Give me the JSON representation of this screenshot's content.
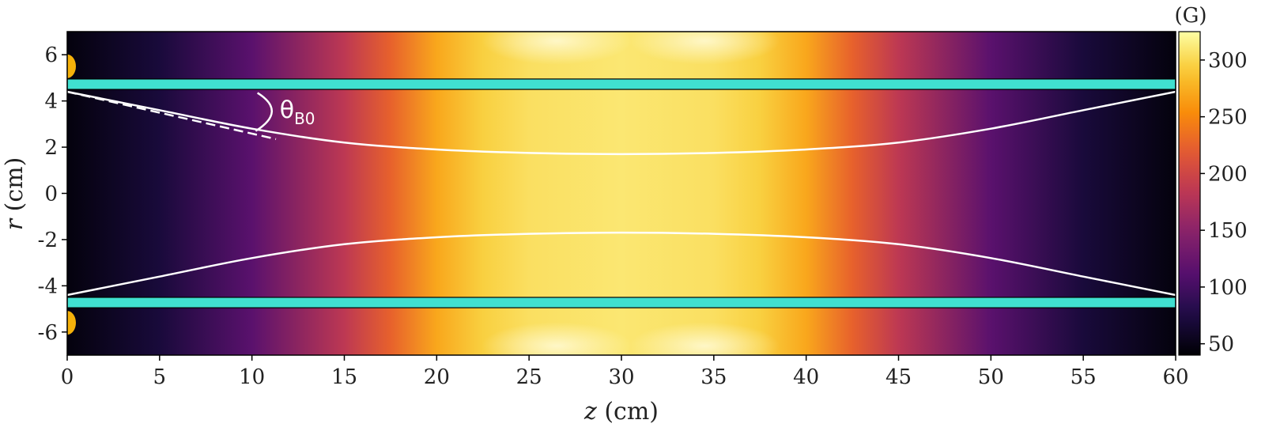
{
  "chart_data": {
    "type": "heatmap",
    "title": "",
    "xlabel": {
      "var": "z",
      "unit": " (cm)"
    },
    "ylabel": {
      "var": "r",
      "unit": " (cm)"
    },
    "xlim": [
      0,
      60
    ],
    "ylim": [
      -7,
      7
    ],
    "xticks": [
      0,
      5,
      10,
      15,
      20,
      25,
      30,
      35,
      40,
      45,
      50,
      55,
      60
    ],
    "yticks": [
      6,
      4,
      2,
      0,
      -2,
      -4,
      -6
    ],
    "colormap": "inferno",
    "colorbar": {
      "unit": "(G)",
      "range": [
        40,
        325
      ],
      "ticks": [
        50,
        100,
        150,
        200,
        250,
        300
      ]
    },
    "field_profile_B_vs_z": {
      "z": [
        0,
        5,
        10,
        15,
        17.5,
        20,
        22.5,
        25,
        30,
        35,
        37.5,
        40,
        42.5,
        45,
        50,
        55,
        60
      ],
      "B": [
        45,
        70,
        115,
        185,
        225,
        270,
        295,
        305,
        310,
        305,
        295,
        270,
        225,
        185,
        115,
        70,
        45
      ]
    },
    "field_lines": [
      {
        "z": [
          0,
          5,
          10,
          15,
          20,
          25,
          30,
          35,
          40,
          45,
          50,
          55,
          60
        ],
        "r": [
          4.4,
          3.6,
          2.8,
          2.2,
          1.9,
          1.75,
          1.7,
          1.75,
          1.9,
          2.2,
          2.8,
          3.6,
          4.4
        ]
      },
      {
        "z": [
          0,
          5,
          10,
          15,
          20,
          25,
          30,
          35,
          40,
          45,
          50,
          55,
          60
        ],
        "r": [
          -4.4,
          -3.6,
          -2.8,
          -2.2,
          -1.9,
          -1.75,
          -1.7,
          -1.75,
          -1.9,
          -2.2,
          -2.8,
          -3.6,
          -4.4
        ]
      }
    ],
    "tangent_line": {
      "z": [
        0,
        11.3
      ],
      "r": [
        4.4,
        2.35
      ]
    },
    "walls": [
      {
        "z": [
          0,
          60
        ],
        "r": [
          4.5,
          4.95
        ]
      },
      {
        "z": [
          0,
          60
        ],
        "r": [
          -4.95,
          -4.5
        ]
      }
    ],
    "coil_markers": [
      {
        "z": 0,
        "r": 5.5
      },
      {
        "z": 0,
        "r": -5.6
      }
    ],
    "annotation": {
      "symbol": "θ",
      "subscript": "B0",
      "z": 11.5,
      "r": 3.4
    },
    "colors": {
      "wall": "#40e0d0",
      "coil": "#f5b10a",
      "field_line": "#ffffff"
    }
  }
}
